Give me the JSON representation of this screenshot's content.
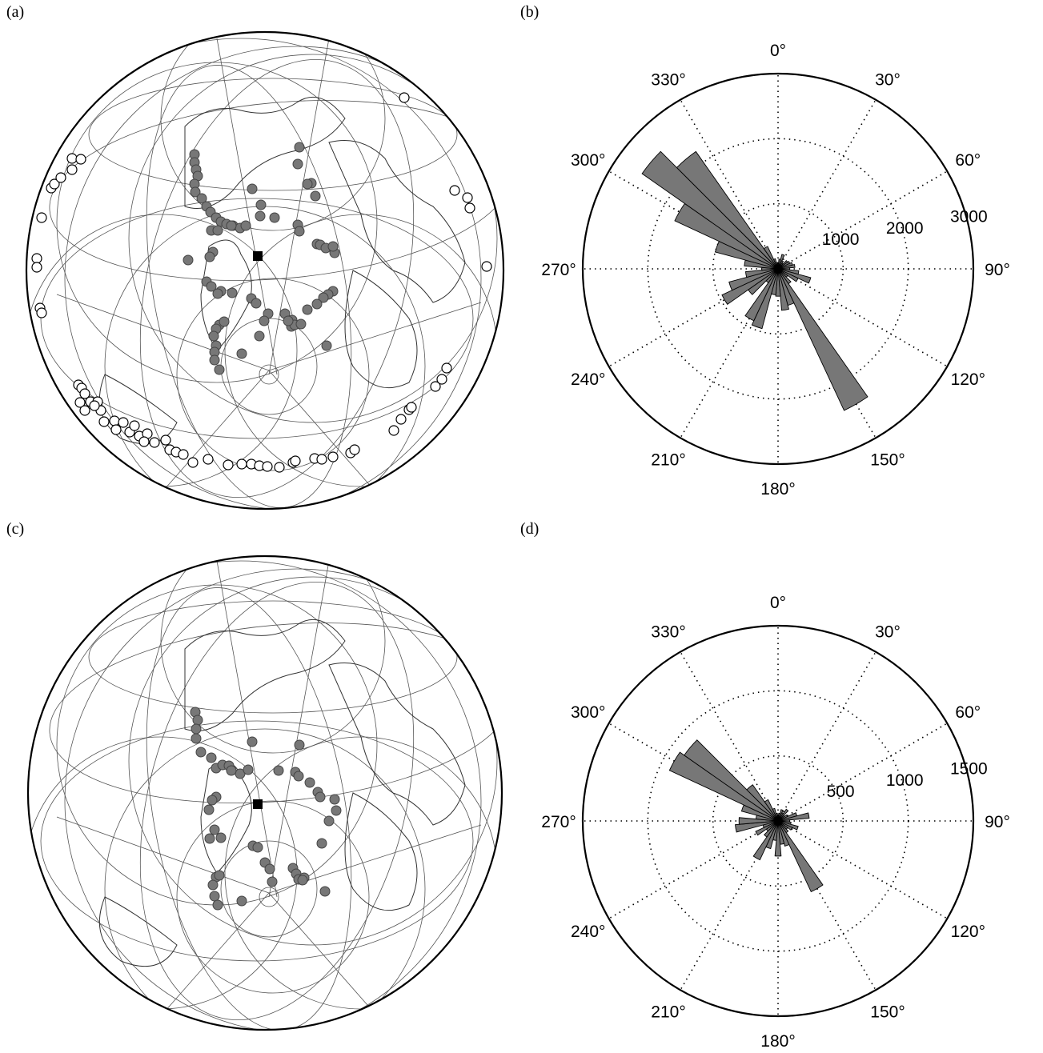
{
  "panels": {
    "a": {
      "label": "(a)"
    },
    "b": {
      "label": "(b)"
    },
    "c": {
      "label": "(c)"
    },
    "d": {
      "label": "(d)"
    }
  },
  "chart_data": [
    {
      "panel": "a",
      "type": "scatter",
      "description_of_marks": "azimuthal map with station marker (black square), grey filled event circles, white open event circles",
      "series": [
        {
          "name": "",
          "style": "station",
          "color": "#000000"
        },
        {
          "name": "",
          "style": "grey",
          "color": "#777777"
        },
        {
          "name": "",
          "style": "open",
          "color": "#ffffff"
        }
      ]
    },
    {
      "panel": "b",
      "type": "bar",
      "polar": true,
      "theta_direction": "clockwise",
      "theta_zero": "top",
      "bin_width_deg": 10,
      "rmax": 3000,
      "radial_ticks": [
        "1000",
        "2000",
        "3000"
      ],
      "radial_tick_values": [
        1000,
        2000,
        3000
      ],
      "angle_labels": [
        "0°",
        "30°",
        "60°",
        "90°",
        "120°",
        "150°",
        "180°",
        "210°",
        "240°",
        "270°",
        "300°",
        "330°"
      ],
      "bins": [
        {
          "a": 0,
          "v": 80
        },
        {
          "a": 10,
          "v": 150
        },
        {
          "a": 20,
          "v": 230
        },
        {
          "a": 30,
          "v": 140
        },
        {
          "a": 40,
          "v": 110
        },
        {
          "a": 50,
          "v": 180
        },
        {
          "a": 60,
          "v": 200
        },
        {
          "a": 70,
          "v": 230
        },
        {
          "a": 80,
          "v": 260
        },
        {
          "a": 90,
          "v": 180
        },
        {
          "a": 100,
          "v": 320
        },
        {
          "a": 110,
          "v": 520
        },
        {
          "a": 120,
          "v": 340
        },
        {
          "a": 130,
          "v": 180
        },
        {
          "a": 140,
          "v": 280
        },
        {
          "a": 150,
          "v": 2400
        },
        {
          "a": 160,
          "v": 580
        },
        {
          "a": 170,
          "v": 640
        },
        {
          "a": 180,
          "v": 420
        },
        {
          "a": 190,
          "v": 400
        },
        {
          "a": 200,
          "v": 950
        },
        {
          "a": 210,
          "v": 880
        },
        {
          "a": 220,
          "v": 260
        },
        {
          "a": 230,
          "v": 560
        },
        {
          "a": 240,
          "v": 950
        },
        {
          "a": 250,
          "v": 780
        },
        {
          "a": 260,
          "v": 500
        },
        {
          "a": 270,
          "v": 250
        },
        {
          "a": 280,
          "v": 520
        },
        {
          "a": 290,
          "v": 1000
        },
        {
          "a": 300,
          "v": 1750
        },
        {
          "a": 310,
          "v": 2550
        },
        {
          "a": 320,
          "v": 2200
        },
        {
          "a": 330,
          "v": 380
        },
        {
          "a": 340,
          "v": 160
        },
        {
          "a": 350,
          "v": 100
        }
      ]
    },
    {
      "panel": "c",
      "type": "scatter",
      "description_of_marks": "azimuthal map with station marker (black square) and grey filled event circles",
      "series": [
        {
          "name": "",
          "style": "station",
          "color": "#000000"
        },
        {
          "name": "",
          "style": "grey",
          "color": "#777777"
        }
      ]
    },
    {
      "panel": "d",
      "type": "bar",
      "polar": true,
      "theta_direction": "clockwise",
      "theta_zero": "top",
      "bin_width_deg": 10,
      "rmax": 1500,
      "radial_ticks": [
        "500",
        "1000",
        "1500"
      ],
      "radial_tick_values": [
        500,
        1000,
        1500
      ],
      "angle_labels": [
        "0°",
        "30°",
        "60°",
        "90°",
        "120°",
        "150°",
        "180°",
        "210°",
        "240°",
        "270°",
        "300°",
        "330°"
      ],
      "bins": [
        {
          "a": 0,
          "v": 40
        },
        {
          "a": 10,
          "v": 60
        },
        {
          "a": 20,
          "v": 90
        },
        {
          "a": 30,
          "v": 70
        },
        {
          "a": 40,
          "v": 110
        },
        {
          "a": 50,
          "v": 60
        },
        {
          "a": 60,
          "v": 80
        },
        {
          "a": 70,
          "v": 150
        },
        {
          "a": 80,
          "v": 240
        },
        {
          "a": 90,
          "v": 90
        },
        {
          "a": 100,
          "v": 100
        },
        {
          "a": 110,
          "v": 160
        },
        {
          "a": 120,
          "v": 120
        },
        {
          "a": 130,
          "v": 90
        },
        {
          "a": 140,
          "v": 110
        },
        {
          "a": 150,
          "v": 600
        },
        {
          "a": 160,
          "v": 200
        },
        {
          "a": 170,
          "v": 180
        },
        {
          "a": 180,
          "v": 270
        },
        {
          "a": 190,
          "v": 150
        },
        {
          "a": 200,
          "v": 220
        },
        {
          "a": 210,
          "v": 330
        },
        {
          "a": 220,
          "v": 150
        },
        {
          "a": 230,
          "v": 110
        },
        {
          "a": 240,
          "v": 190
        },
        {
          "a": 250,
          "v": 120
        },
        {
          "a": 260,
          "v": 330
        },
        {
          "a": 270,
          "v": 300
        },
        {
          "a": 280,
          "v": 170
        },
        {
          "a": 290,
          "v": 290
        },
        {
          "a": 300,
          "v": 920
        },
        {
          "a": 310,
          "v": 880
        },
        {
          "a": 320,
          "v": 340
        },
        {
          "a": 330,
          "v": 180
        },
        {
          "a": 340,
          "v": 100
        },
        {
          "a": 350,
          "v": 60
        }
      ]
    }
  ]
}
